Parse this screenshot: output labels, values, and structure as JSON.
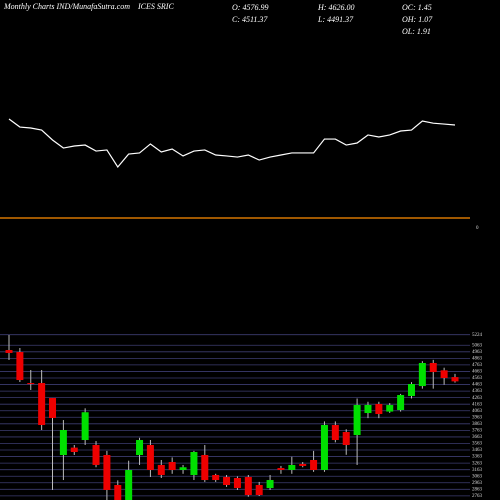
{
  "chart_data": {
    "type": "candlestick",
    "title": "Monthly Charts IND/MunafaSutra.com",
    "symbol": "ICES SRIC",
    "info": {
      "open": "O: 4576.99",
      "high": "H: 4626.00",
      "oc": "OC: 1.45",
      "close": "C: 4511.37",
      "low": "L: 4491.37",
      "oh": "OH: 1.07",
      "ol": "OL: 1.91"
    },
    "up_color": "#00e000",
    "down_color": "#ee0000",
    "ohlc": [
      [
        4990,
        5219,
        4838,
        4945
      ],
      [
        4960,
        5021,
        4502,
        4532
      ],
      [
        4486,
        4685,
        4380,
        4470
      ],
      [
        4486,
        4685,
        3769,
        3845
      ],
      [
        4257,
        4257,
        2853,
        3952
      ],
      [
        3387,
        3921,
        3005,
        3769
      ],
      [
        3500,
        3540,
        3387,
        3433
      ],
      [
        3616,
        4100,
        3540,
        4040
      ],
      [
        3540,
        3600,
        3200,
        3235
      ],
      [
        3387,
        3450,
        2700,
        2853
      ],
      [
        2929,
        3000,
        2700,
        2700
      ],
      [
        2700,
        3300,
        2700,
        3158
      ],
      [
        3387,
        3650,
        3235,
        3616
      ],
      [
        3540,
        3616,
        3051,
        3158
      ],
      [
        3235,
        3311,
        3036,
        3082
      ],
      [
        3280,
        3350,
        3100,
        3158
      ],
      [
        3158,
        3235,
        3100,
        3200
      ],
      [
        3082,
        3450,
        3005,
        3433
      ],
      [
        3387,
        3540,
        2976,
        3005
      ],
      [
        3082,
        3100,
        2976,
        3005
      ],
      [
        3051,
        3082,
        2900,
        2929
      ],
      [
        3036,
        3060,
        2853,
        2883
      ],
      [
        3051,
        3082,
        2750,
        2776
      ],
      [
        2929,
        2976,
        2761,
        2776
      ],
      [
        2883,
        3082,
        2853,
        3005
      ],
      [
        3188,
        3220,
        3100,
        3158
      ],
      [
        3158,
        3360,
        3100,
        3235
      ],
      [
        3250,
        3280,
        3200,
        3220
      ],
      [
        3311,
        3450,
        3130,
        3158
      ],
      [
        3158,
        3900,
        3130,
        3845
      ],
      [
        3845,
        3900,
        3580,
        3616
      ],
      [
        3738,
        3780,
        3390,
        3540
      ],
      [
        3692,
        4250,
        3235,
        4151
      ],
      [
        4028,
        4200,
        3950,
        4151
      ],
      [
        4166,
        4200,
        3950,
        4013
      ],
      [
        4050,
        4180,
        4030,
        4150
      ],
      [
        4074,
        4320,
        4050,
        4303
      ],
      [
        4288,
        4500,
        4250,
        4471
      ],
      [
        4440,
        4820,
        4400,
        4792
      ],
      [
        4792,
        4840,
        4400,
        4654
      ],
      [
        4680,
        4720,
        4460,
        4563
      ],
      [
        4576.99,
        4626,
        4491.37,
        4511.37
      ]
    ],
    "ylim": [
      2700,
      5250
    ],
    "yticks": [
      2763,
      2863,
      2963,
      3063,
      3163,
      3263,
      3363,
      3463,
      3563,
      3663,
      3763,
      3863,
      3963,
      4063,
      4163,
      4263,
      4363,
      4463,
      4563,
      4663,
      4763,
      4863,
      4963,
      5063,
      5224
    ],
    "grid": true,
    "indicator": {
      "color": "#ffffff",
      "level": 0,
      "level_color": "#ff8c00",
      "ylim": [
        0,
        115
      ],
      "values": [
        82.5,
        75.8,
        75,
        73.3,
        65,
        58.3,
        60,
        60.8,
        55.8,
        56.7,
        42.5,
        53.3,
        54.2,
        61.7,
        55,
        57.5,
        51.7,
        55.8,
        56.7,
        52.5,
        51.7,
        50.8,
        52.5,
        48.3,
        50.8,
        52.5,
        54.2,
        54.2,
        54.2,
        65.8,
        65.8,
        60.8,
        62.5,
        69.2,
        67.5,
        69.2,
        72.5,
        73.3,
        80.8,
        79,
        78.3,
        77.5
      ]
    }
  }
}
